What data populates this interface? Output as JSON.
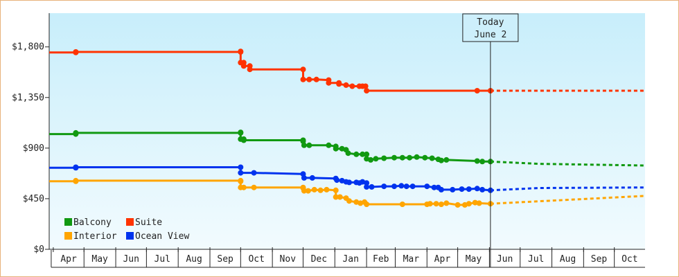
{
  "chart_data": {
    "type": "line",
    "annotation": {
      "line1": "Today",
      "line2": "June 2",
      "x": "2025-06-02"
    },
    "yticks": [
      {
        "value": 0,
        "label": "$0"
      },
      {
        "value": 450,
        "label": "$450"
      },
      {
        "value": 900,
        "label": "$900"
      },
      {
        "value": 1350,
        "label": "$1,350"
      },
      {
        "value": 1800,
        "label": "$1,800"
      }
    ],
    "ylim": [
      0,
      2100
    ],
    "xlim": [
      "2024-03-28",
      "2025-10-31"
    ],
    "month_ticks": [
      {
        "label": "Apr",
        "start": "2024-04-01",
        "end": "2024-05-01"
      },
      {
        "label": "May",
        "start": "2024-05-01",
        "end": "2024-06-01"
      },
      {
        "label": "Jun",
        "start": "2024-06-01",
        "end": "2024-07-01"
      },
      {
        "label": "Jul",
        "start": "2024-07-01",
        "end": "2024-08-01"
      },
      {
        "label": "Aug",
        "start": "2024-08-01",
        "end": "2024-09-01"
      },
      {
        "label": "Sep",
        "start": "2024-09-01",
        "end": "2024-10-01"
      },
      {
        "label": "Oct",
        "start": "2024-10-01",
        "end": "2024-11-01"
      },
      {
        "label": "Nov",
        "start": "2024-11-01",
        "end": "2024-12-01"
      },
      {
        "label": "Dec",
        "start": "2024-12-01",
        "end": "2025-01-01"
      },
      {
        "label": "Jan",
        "start": "2025-01-01",
        "end": "2025-02-01"
      },
      {
        "label": "Feb",
        "start": "2025-02-01",
        "end": "2025-03-01"
      },
      {
        "label": "Mar",
        "start": "2025-03-01",
        "end": "2025-04-01"
      },
      {
        "label": "Apr",
        "start": "2025-04-01",
        "end": "2025-05-01"
      },
      {
        "label": "May",
        "start": "2025-05-01",
        "end": "2025-06-01"
      },
      {
        "label": "Jun",
        "start": "2025-06-01",
        "end": "2025-07-01"
      },
      {
        "label": "Jul",
        "start": "2025-07-01",
        "end": "2025-08-01"
      },
      {
        "label": "Aug",
        "start": "2025-08-01",
        "end": "2025-09-01"
      },
      {
        "label": "Sep",
        "start": "2025-09-01",
        "end": "2025-10-01"
      },
      {
        "label": "Oct",
        "start": "2025-10-01",
        "end": "2025-10-31"
      }
    ],
    "legend_position": "bottom-left",
    "series": [
      {
        "name": "Suite",
        "color": "#ff3300",
        "points": [
          [
            "2024-03-28",
            1750
          ],
          [
            "2024-04-23",
            1750
          ],
          [
            "2024-04-23",
            1755
          ],
          [
            "2024-10-01",
            1755
          ],
          [
            "2024-10-01",
            1760
          ],
          [
            "2024-10-01",
            1660
          ],
          [
            "2024-10-04",
            1660
          ],
          [
            "2024-10-04",
            1630
          ],
          [
            "2024-10-10",
            1630
          ],
          [
            "2024-10-10",
            1600
          ],
          [
            "2024-12-01",
            1600
          ],
          [
            "2024-12-01",
            1510
          ],
          [
            "2024-12-07",
            1510
          ],
          [
            "2024-12-14",
            1510
          ],
          [
            "2024-12-26",
            1505
          ],
          [
            "2024-12-26",
            1480
          ],
          [
            "2025-01-05",
            1480
          ],
          [
            "2025-01-05",
            1470
          ],
          [
            "2025-01-12",
            1460
          ],
          [
            "2025-01-18",
            1450
          ],
          [
            "2025-01-25",
            1450
          ],
          [
            "2025-01-28",
            1450
          ],
          [
            "2025-01-31",
            1450
          ],
          [
            "2025-02-01",
            1410
          ],
          [
            "2025-05-20",
            1410
          ],
          [
            "2025-06-02",
            1410
          ]
        ],
        "projection": [
          [
            "2025-06-02",
            1410
          ],
          [
            "2025-10-31",
            1410
          ]
        ]
      },
      {
        "name": "Balcony",
        "color": "#119911",
        "points": [
          [
            "2024-03-28",
            1025
          ],
          [
            "2024-04-23",
            1025
          ],
          [
            "2024-04-23",
            1035
          ],
          [
            "2024-10-01",
            1035
          ],
          [
            "2024-10-01",
            1040
          ],
          [
            "2024-10-01",
            980
          ],
          [
            "2024-10-04",
            980
          ],
          [
            "2024-10-04",
            970
          ],
          [
            "2024-12-01",
            970
          ],
          [
            "2024-12-01",
            960
          ],
          [
            "2024-12-02",
            925
          ],
          [
            "2024-12-07",
            925
          ],
          [
            "2024-12-26",
            925
          ],
          [
            "2025-01-02",
            915
          ],
          [
            "2025-01-02",
            895
          ],
          [
            "2025-01-08",
            895
          ],
          [
            "2025-01-12",
            885
          ],
          [
            "2025-01-14",
            855
          ],
          [
            "2025-01-22",
            845
          ],
          [
            "2025-01-28",
            845
          ],
          [
            "2025-02-01",
            845
          ],
          [
            "2025-02-01",
            805
          ],
          [
            "2025-02-05",
            795
          ],
          [
            "2025-02-10",
            805
          ],
          [
            "2025-02-18",
            810
          ],
          [
            "2025-02-28",
            815
          ],
          [
            "2025-03-08",
            815
          ],
          [
            "2025-03-15",
            815
          ],
          [
            "2025-03-22",
            820
          ],
          [
            "2025-03-30",
            815
          ],
          [
            "2025-04-06",
            810
          ],
          [
            "2025-04-12",
            800
          ],
          [
            "2025-04-15",
            790
          ],
          [
            "2025-04-20",
            795
          ],
          [
            "2025-05-20",
            785
          ],
          [
            "2025-05-25",
            780
          ],
          [
            "2025-06-02",
            780
          ]
        ],
        "projection": [
          [
            "2025-06-02",
            780
          ],
          [
            "2025-07-20",
            760
          ],
          [
            "2025-10-31",
            745
          ]
        ]
      },
      {
        "name": "Ocean View",
        "color": "#0033ee",
        "points": [
          [
            "2024-03-28",
            725
          ],
          [
            "2024-04-23",
            725
          ],
          [
            "2024-04-23",
            730
          ],
          [
            "2024-10-01",
            730
          ],
          [
            "2024-10-01",
            730
          ],
          [
            "2024-10-01",
            680
          ],
          [
            "2024-10-14",
            680
          ],
          [
            "2024-12-01",
            670
          ],
          [
            "2024-12-02",
            635
          ],
          [
            "2024-12-10",
            635
          ],
          [
            "2025-01-02",
            630
          ],
          [
            "2025-01-03",
            615
          ],
          [
            "2025-01-08",
            610
          ],
          [
            "2025-01-12",
            600
          ],
          [
            "2025-01-15",
            595
          ],
          [
            "2025-01-22",
            595
          ],
          [
            "2025-01-25",
            590
          ],
          [
            "2025-01-28",
            600
          ],
          [
            "2025-02-01",
            590
          ],
          [
            "2025-02-01",
            555
          ],
          [
            "2025-02-06",
            555
          ],
          [
            "2025-02-18",
            560
          ],
          [
            "2025-02-28",
            560
          ],
          [
            "2025-03-07",
            565
          ],
          [
            "2025-03-12",
            560
          ],
          [
            "2025-03-18",
            560
          ],
          [
            "2025-04-01",
            560
          ],
          [
            "2025-04-08",
            550
          ],
          [
            "2025-04-12",
            550
          ],
          [
            "2025-04-15",
            530
          ],
          [
            "2025-04-26",
            530
          ],
          [
            "2025-05-05",
            535
          ],
          [
            "2025-05-12",
            535
          ],
          [
            "2025-05-20",
            540
          ],
          [
            "2025-05-25",
            530
          ],
          [
            "2025-06-02",
            525
          ]
        ],
        "projection": [
          [
            "2025-06-02",
            525
          ],
          [
            "2025-07-20",
            545
          ],
          [
            "2025-10-31",
            550
          ]
        ]
      },
      {
        "name": "Interior",
        "color": "#ffa500",
        "points": [
          [
            "2024-03-28",
            605
          ],
          [
            "2024-04-23",
            605
          ],
          [
            "2024-04-23",
            610
          ],
          [
            "2024-10-01",
            610
          ],
          [
            "2024-10-01",
            605
          ],
          [
            "2024-10-01",
            550
          ],
          [
            "2024-10-04",
            550
          ],
          [
            "2024-10-14",
            550
          ],
          [
            "2024-12-01",
            550
          ],
          [
            "2024-12-01",
            545
          ],
          [
            "2024-12-02",
            520
          ],
          [
            "2024-12-06",
            520
          ],
          [
            "2024-12-12",
            530
          ],
          [
            "2024-12-18",
            525
          ],
          [
            "2024-12-24",
            530
          ],
          [
            "2025-01-02",
            525
          ],
          [
            "2025-01-02",
            465
          ],
          [
            "2025-01-06",
            465
          ],
          [
            "2025-01-12",
            455
          ],
          [
            "2025-01-15",
            430
          ],
          [
            "2025-01-22",
            420
          ],
          [
            "2025-01-26",
            410
          ],
          [
            "2025-01-30",
            420
          ],
          [
            "2025-02-01",
            400
          ],
          [
            "2025-03-08",
            400
          ],
          [
            "2025-04-01",
            400
          ],
          [
            "2025-04-04",
            405
          ],
          [
            "2025-04-10",
            405
          ],
          [
            "2025-04-15",
            400
          ],
          [
            "2025-04-20",
            410
          ],
          [
            "2025-05-01",
            395
          ],
          [
            "2025-05-08",
            395
          ],
          [
            "2025-05-12",
            405
          ],
          [
            "2025-05-18",
            415
          ],
          [
            "2025-05-22",
            410
          ],
          [
            "2025-06-02",
            405
          ]
        ],
        "projection": [
          [
            "2025-06-02",
            405
          ],
          [
            "2025-10-31",
            475
          ]
        ]
      }
    ],
    "legend": [
      {
        "name": "Balcony",
        "color": "#119911"
      },
      {
        "name": "Suite",
        "color": "#ff3300"
      },
      {
        "name": "Interior",
        "color": "#ffa500"
      },
      {
        "name": "Ocean View",
        "color": "#0033ee"
      }
    ],
    "colors": {
      "plot_bg_top": "#c8eefb",
      "plot_bg_bottom": "#f2fbfe",
      "frame_border": "#e8b27a",
      "axis": "#222222"
    }
  }
}
